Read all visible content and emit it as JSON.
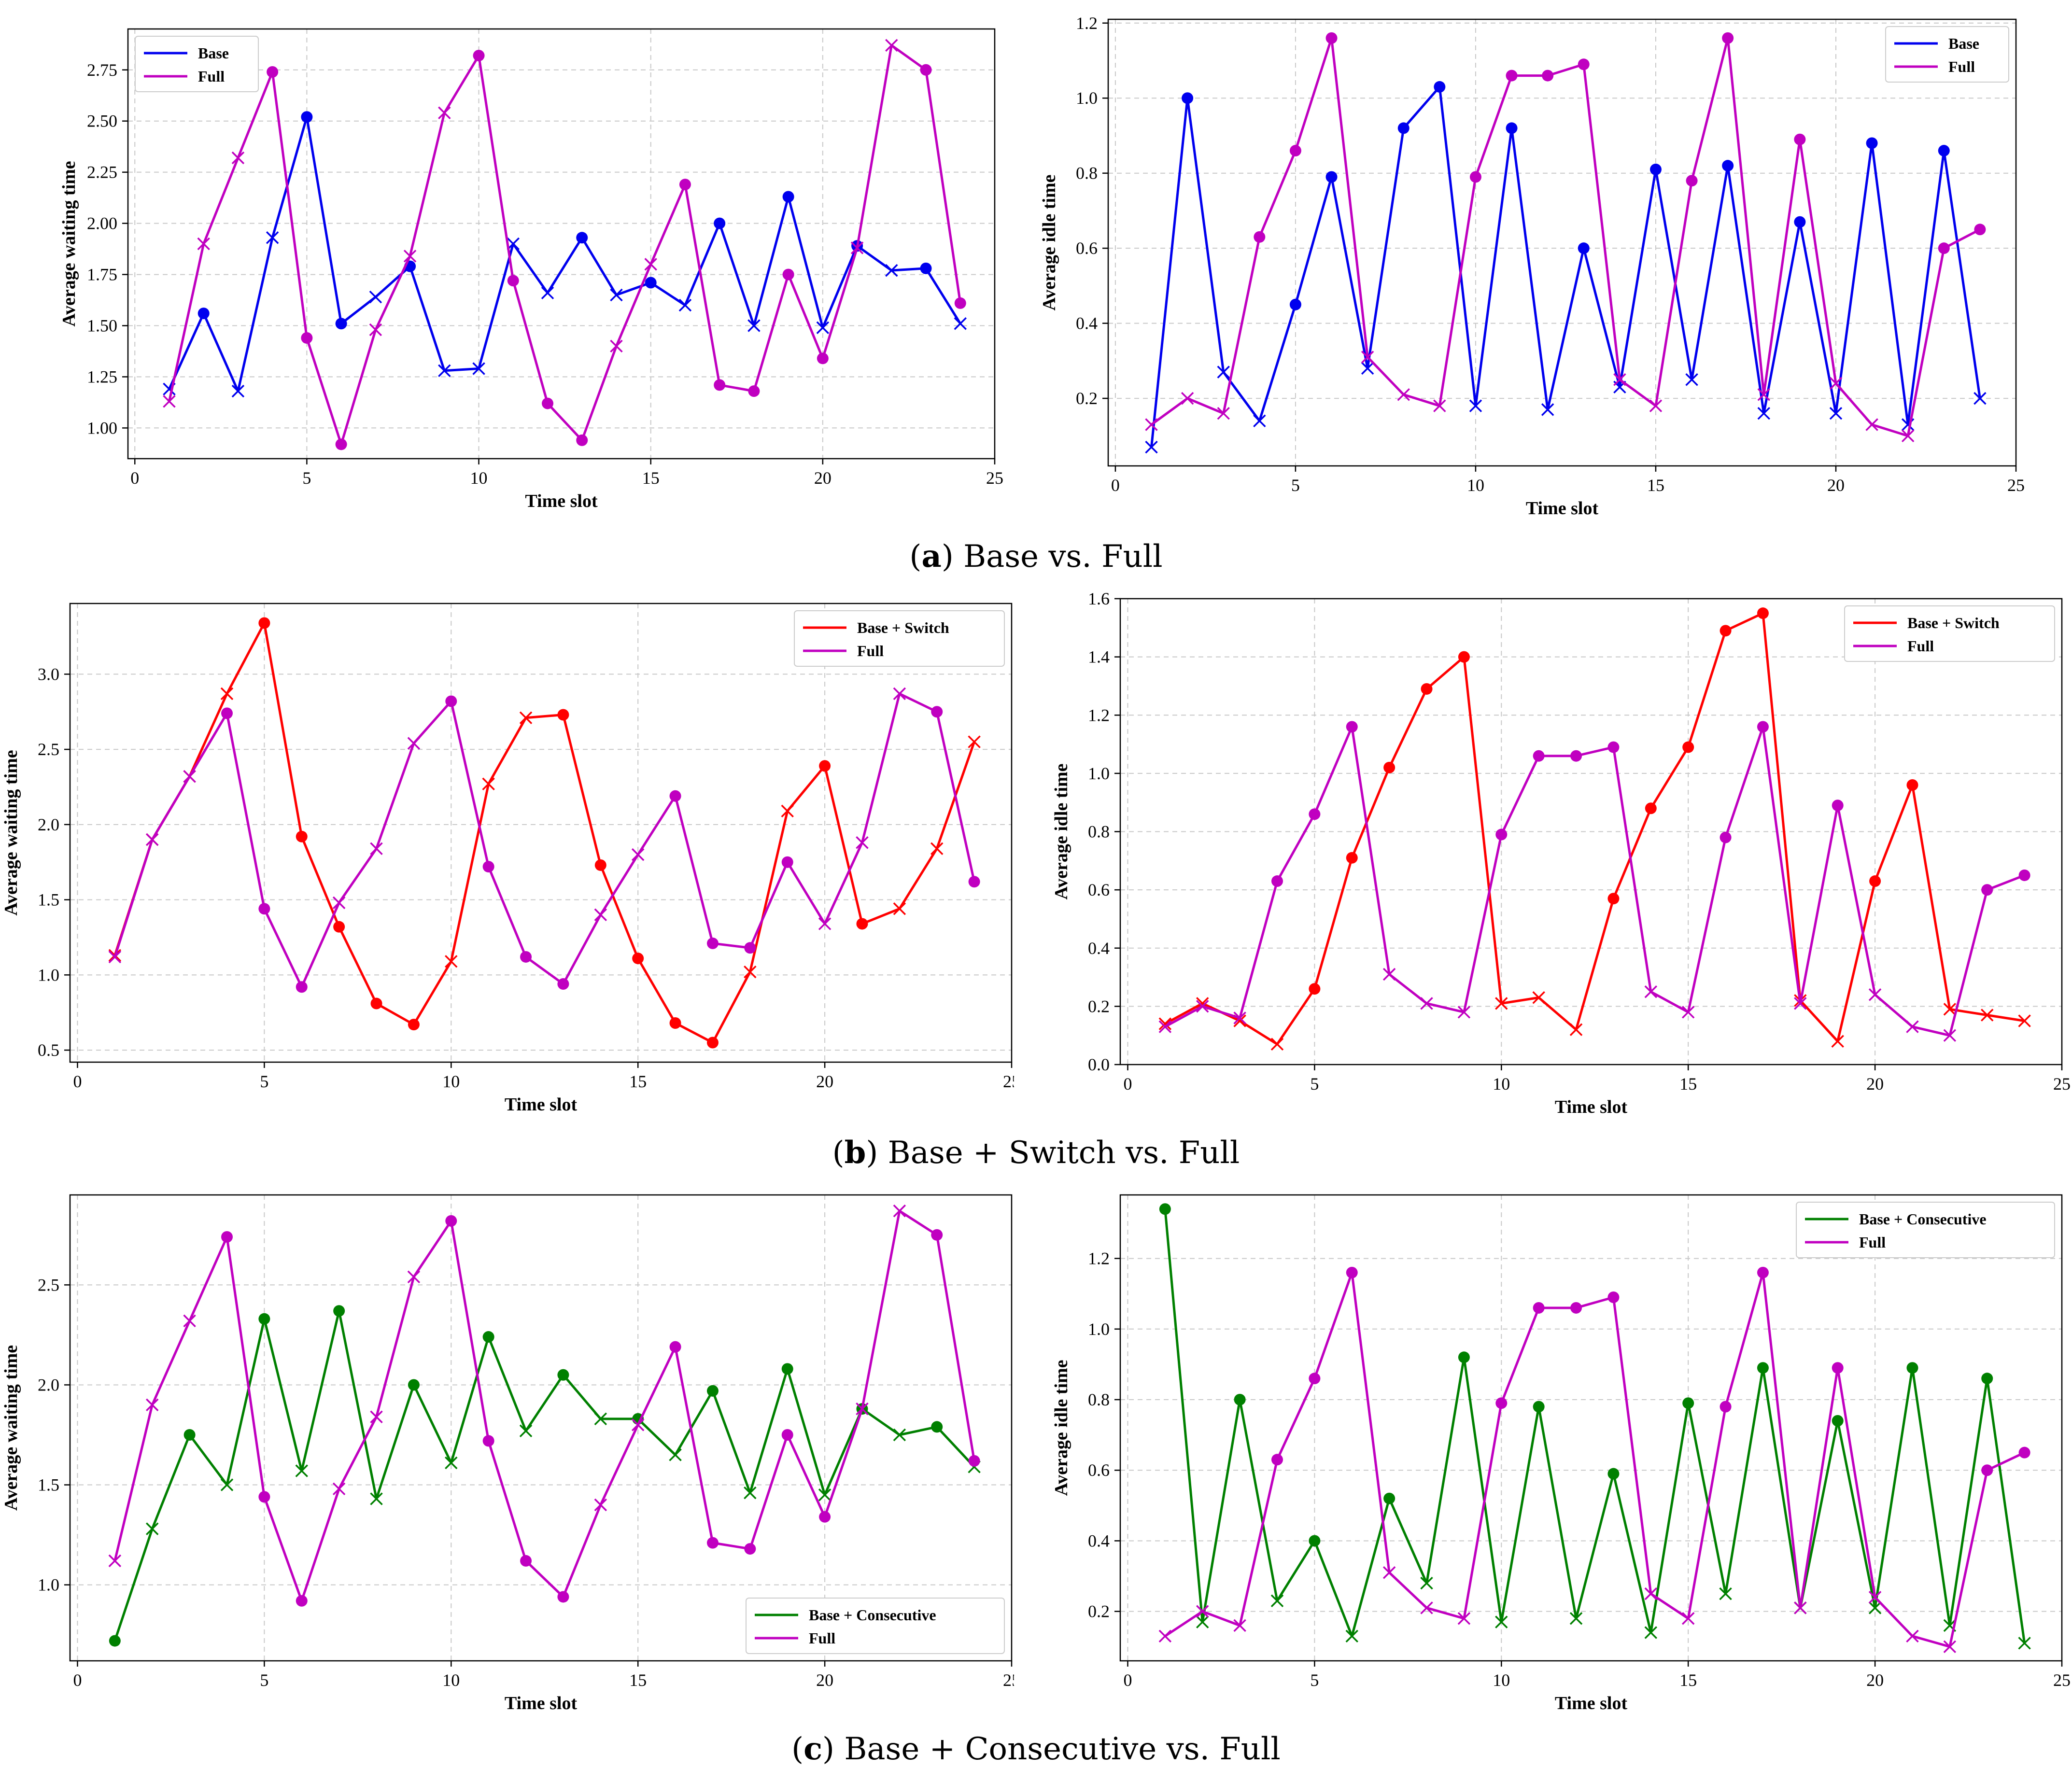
{
  "colors": {
    "blue": "#0000ee",
    "magenta": "#c000c0",
    "red": "#ff0000",
    "green": "#008000",
    "grid": "#c8c8c8"
  },
  "captions": [
    {
      "letter": "a",
      "text": " Base vs. Full"
    },
    {
      "letter": "b",
      "text": " Base + Switch vs. Full"
    },
    {
      "letter": "c",
      "text": " Base + Consecutive vs. Full"
    }
  ],
  "chart_data": [
    {
      "id": "a-left",
      "type": "line",
      "xlabel": "Time slot",
      "ylabel": "Average waiting time",
      "xlim": [
        -0.2,
        25
      ],
      "ylim": [
        0.85,
        2.95
      ],
      "xticks": [
        0,
        5,
        10,
        15,
        20,
        25
      ],
      "xtick_labels": [
        "0",
        "5",
        "10",
        "15",
        "20",
        "25"
      ],
      "yticks": [
        1.0,
        1.25,
        1.5,
        1.75,
        2.0,
        2.25,
        2.5,
        2.75
      ],
      "ytick_labels": [
        "1.00",
        "1.25",
        "1.50",
        "1.75",
        "2.00",
        "2.25",
        "2.50",
        "2.75"
      ],
      "legend_loc": "upper-left",
      "x": [
        1,
        2,
        3,
        4,
        5,
        6,
        7,
        8,
        9,
        10,
        11,
        12,
        13,
        14,
        15,
        16,
        17,
        18,
        19,
        20,
        21,
        22,
        23,
        24
      ],
      "series": [
        {
          "name": "Base",
          "color": "blue",
          "values": [
            1.19,
            1.56,
            1.18,
            1.93,
            2.52,
            1.51,
            1.64,
            1.79,
            1.28,
            1.29,
            1.9,
            1.66,
            1.93,
            1.65,
            1.71,
            1.6,
            2.0,
            1.5,
            2.13,
            1.49,
            1.89,
            1.77,
            1.78,
            1.51
          ],
          "markers": [
            "x",
            "o",
            "x",
            "x",
            "o",
            "o",
            "x",
            "o",
            "x",
            "x",
            "x",
            "x",
            "o",
            "x",
            "o",
            "x",
            "o",
            "x",
            "o",
            "x",
            "o",
            "x",
            "o",
            "x"
          ]
        },
        {
          "name": "Full",
          "color": "magenta",
          "values": [
            1.13,
            1.9,
            2.32,
            2.74,
            1.44,
            0.92,
            1.48,
            1.84,
            2.54,
            2.82,
            1.72,
            1.12,
            0.94,
            1.4,
            1.8,
            2.19,
            1.21,
            1.18,
            1.75,
            1.34,
            1.88,
            2.87,
            2.75,
            1.61
          ],
          "markers": [
            "x",
            "x",
            "x",
            "o",
            "o",
            "o",
            "x",
            "x",
            "x",
            "o",
            "o",
            "o",
            "o",
            "x",
            "x",
            "o",
            "o",
            "o",
            "o",
            "o",
            "x",
            "x",
            "o",
            "o"
          ]
        }
      ]
    },
    {
      "id": "a-right",
      "type": "line",
      "xlabel": "Time slot",
      "ylabel": "Average idle time",
      "xlim": [
        -0.2,
        25
      ],
      "ylim": [
        0.02,
        1.21
      ],
      "xticks": [
        0,
        5,
        10,
        15,
        20,
        25
      ],
      "xtick_labels": [
        "0",
        "5",
        "10",
        "15",
        "20",
        "25"
      ],
      "yticks": [
        0.2,
        0.4,
        0.6,
        0.8,
        1.0,
        1.2
      ],
      "ytick_labels": [
        "0.2",
        "0.4",
        "0.6",
        "0.8",
        "1.0",
        "1.2"
      ],
      "legend_loc": "upper-right",
      "x": [
        1,
        2,
        3,
        4,
        5,
        6,
        7,
        8,
        9,
        10,
        11,
        12,
        13,
        14,
        15,
        16,
        17,
        18,
        19,
        20,
        21,
        22,
        23,
        24
      ],
      "series": [
        {
          "name": "Base",
          "color": "blue",
          "values": [
            0.07,
            1.0,
            0.27,
            0.14,
            0.45,
            0.79,
            0.28,
            0.92,
            1.03,
            0.18,
            0.92,
            0.17,
            0.6,
            0.23,
            0.81,
            0.25,
            0.82,
            0.16,
            0.67,
            0.16,
            0.88,
            0.13,
            0.86,
            0.2
          ],
          "markers": [
            "x",
            "o",
            "x",
            "x",
            "o",
            "o",
            "x",
            "o",
            "o",
            "x",
            "o",
            "x",
            "o",
            "x",
            "o",
            "x",
            "o",
            "x",
            "o",
            "x",
            "o",
            "x",
            "o",
            "x"
          ]
        },
        {
          "name": "Full",
          "color": "magenta",
          "values": [
            0.13,
            0.2,
            0.16,
            0.63,
            0.86,
            1.16,
            0.31,
            0.21,
            0.18,
            0.79,
            1.06,
            1.06,
            1.09,
            0.25,
            0.18,
            0.78,
            1.16,
            0.21,
            0.89,
            0.24,
            0.13,
            0.1,
            0.6,
            0.65
          ],
          "markers": [
            "x",
            "x",
            "x",
            "o",
            "o",
            "o",
            "x",
            "x",
            "x",
            "o",
            "o",
            "o",
            "o",
            "x",
            "x",
            "o",
            "o",
            "x",
            "o",
            "x",
            "x",
            "x",
            "o",
            "o"
          ]
        }
      ]
    },
    {
      "id": "b-left",
      "type": "line",
      "xlabel": "Time slot",
      "ylabel": "Average waiting time",
      "xlim": [
        -0.2,
        25
      ],
      "ylim": [
        0.42,
        3.47
      ],
      "xticks": [
        0,
        5,
        10,
        15,
        20,
        25
      ],
      "xtick_labels": [
        "0",
        "5",
        "10",
        "15",
        "20",
        "25"
      ],
      "yticks": [
        0.5,
        1.0,
        1.5,
        2.0,
        2.5,
        3.0
      ],
      "ytick_labels": [
        "0.5",
        "1.0",
        "1.5",
        "2.0",
        "2.5",
        "3.0"
      ],
      "legend_loc": "upper-right",
      "x": [
        1,
        2,
        3,
        4,
        5,
        6,
        7,
        8,
        9,
        10,
        11,
        12,
        13,
        14,
        15,
        16,
        17,
        18,
        19,
        20,
        21,
        22,
        23,
        24
      ],
      "series": [
        {
          "name": "Base + Switch",
          "color": "red",
          "values": [
            1.13,
            1.9,
            2.32,
            2.87,
            3.34,
            1.92,
            1.32,
            0.81,
            0.67,
            1.09,
            2.27,
            2.71,
            2.73,
            1.73,
            1.11,
            0.68,
            0.55,
            1.02,
            2.09,
            2.39,
            1.34,
            1.44,
            1.84,
            2.55
          ],
          "markers": [
            "x",
            "x",
            "x",
            "x",
            "o",
            "o",
            "o",
            "o",
            "o",
            "x",
            "x",
            "x",
            "o",
            "o",
            "o",
            "o",
            "o",
            "x",
            "x",
            "o",
            "o",
            "x",
            "x",
            "x"
          ]
        },
        {
          "name": "Full",
          "color": "magenta",
          "values": [
            1.12,
            1.9,
            2.32,
            2.74,
            1.44,
            0.92,
            1.48,
            1.84,
            2.54,
            2.82,
            1.72,
            1.12,
            0.94,
            1.4,
            1.8,
            2.19,
            1.21,
            1.18,
            1.75,
            1.34,
            1.88,
            2.87,
            2.75,
            1.62
          ],
          "markers": [
            "x",
            "x",
            "x",
            "o",
            "o",
            "o",
            "x",
            "x",
            "x",
            "o",
            "o",
            "o",
            "o",
            "x",
            "x",
            "o",
            "o",
            "o",
            "o",
            "x",
            "x",
            "x",
            "o",
            "o"
          ]
        }
      ]
    },
    {
      "id": "b-right",
      "type": "line",
      "xlabel": "Time slot",
      "ylabel": "Average idle time",
      "xlim": [
        -0.2,
        25
      ],
      "ylim": [
        0.0,
        1.6
      ],
      "xticks": [
        0,
        5,
        10,
        15,
        20,
        25
      ],
      "xtick_labels": [
        "0",
        "5",
        "10",
        "15",
        "20",
        "25"
      ],
      "yticks": [
        0.0,
        0.2,
        0.4,
        0.6,
        0.8,
        1.0,
        1.2,
        1.4,
        1.6
      ],
      "ytick_labels": [
        "0.0",
        "0.2",
        "0.4",
        "0.6",
        "0.8",
        "1.0",
        "1.2",
        "1.4",
        "1.6"
      ],
      "legend_loc": "upper-right",
      "x": [
        1,
        2,
        3,
        4,
        5,
        6,
        7,
        8,
        9,
        10,
        11,
        12,
        13,
        14,
        15,
        16,
        17,
        18,
        19,
        20,
        21,
        22,
        23,
        24
      ],
      "series": [
        {
          "name": "Base + Switch",
          "color": "red",
          "values": [
            0.14,
            0.21,
            0.15,
            0.07,
            0.26,
            0.71,
            1.02,
            1.29,
            1.4,
            0.21,
            0.23,
            0.12,
            0.57,
            0.88,
            1.09,
            1.49,
            1.55,
            0.22,
            0.08,
            0.63,
            0.96,
            0.19,
            0.17,
            0.15
          ],
          "markers": [
            "x",
            "x",
            "x",
            "x",
            "o",
            "o",
            "o",
            "o",
            "o",
            "x",
            "x",
            "x",
            "o",
            "o",
            "o",
            "o",
            "o",
            "x",
            "x",
            "o",
            "o",
            "x",
            "x",
            "x"
          ]
        },
        {
          "name": "Full",
          "color": "magenta",
          "values": [
            0.13,
            0.2,
            0.16,
            0.63,
            0.86,
            1.16,
            0.31,
            0.21,
            0.18,
            0.79,
            1.06,
            1.06,
            1.09,
            0.25,
            0.18,
            0.78,
            1.16,
            0.21,
            0.89,
            0.24,
            0.13,
            0.1,
            0.6,
            0.65
          ],
          "markers": [
            "x",
            "x",
            "x",
            "o",
            "o",
            "o",
            "x",
            "x",
            "x",
            "o",
            "o",
            "o",
            "o",
            "x",
            "x",
            "o",
            "o",
            "x",
            "o",
            "x",
            "x",
            "x",
            "o",
            "o"
          ]
        }
      ]
    },
    {
      "id": "c-left",
      "type": "line",
      "xlabel": "Time slot",
      "ylabel": "Average waiting time",
      "xlim": [
        -0.2,
        25
      ],
      "ylim": [
        0.62,
        2.95
      ],
      "xticks": [
        0,
        5,
        10,
        15,
        20,
        25
      ],
      "xtick_labels": [
        "0",
        "5",
        "10",
        "15",
        "20",
        "25"
      ],
      "yticks": [
        1.0,
        1.5,
        2.0,
        2.5
      ],
      "ytick_labels": [
        "1.0",
        "1.5",
        "2.0",
        "2.5"
      ],
      "legend_loc": "lower-right",
      "x": [
        1,
        2,
        3,
        4,
        5,
        6,
        7,
        8,
        9,
        10,
        11,
        12,
        13,
        14,
        15,
        16,
        17,
        18,
        19,
        20,
        21,
        22,
        23,
        24
      ],
      "series": [
        {
          "name": "Base + Consecutive",
          "color": "green",
          "values": [
            0.72,
            1.28,
            1.75,
            1.5,
            2.33,
            1.57,
            2.37,
            1.43,
            2.0,
            1.61,
            2.24,
            1.77,
            2.05,
            1.83,
            1.83,
            1.65,
            1.97,
            1.46,
            2.08,
            1.45,
            1.88,
            1.75,
            1.79,
            1.59
          ],
          "markers": [
            "o",
            "x",
            "o",
            "x",
            "o",
            "x",
            "o",
            "x",
            "o",
            "x",
            "o",
            "x",
            "o",
            "x",
            "o",
            "x",
            "o",
            "x",
            "o",
            "x",
            "o",
            "x",
            "o",
            "x"
          ]
        },
        {
          "name": "Full",
          "color": "magenta",
          "values": [
            1.12,
            1.9,
            2.32,
            2.74,
            1.44,
            0.92,
            1.48,
            1.84,
            2.54,
            2.82,
            1.72,
            1.12,
            0.94,
            1.4,
            1.8,
            2.19,
            1.21,
            1.18,
            1.75,
            1.34,
            1.88,
            2.87,
            2.75,
            1.62
          ],
          "markers": [
            "x",
            "x",
            "x",
            "o",
            "o",
            "o",
            "x",
            "x",
            "x",
            "o",
            "o",
            "o",
            "o",
            "x",
            "x",
            "o",
            "o",
            "o",
            "o",
            "o",
            "x",
            "x",
            "o",
            "o"
          ]
        }
      ]
    },
    {
      "id": "c-right",
      "type": "line",
      "xlabel": "Time slot",
      "ylabel": "Average idle time",
      "xlim": [
        -0.2,
        25
      ],
      "ylim": [
        0.06,
        1.38
      ],
      "xticks": [
        0,
        5,
        10,
        15,
        20,
        25
      ],
      "xtick_labels": [
        "0",
        "5",
        "10",
        "15",
        "20",
        "25"
      ],
      "yticks": [
        0.2,
        0.4,
        0.6,
        0.8,
        1.0,
        1.2
      ],
      "ytick_labels": [
        "0.2",
        "0.4",
        "0.6",
        "0.8",
        "1.0",
        "1.2"
      ],
      "legend_loc": "upper-right",
      "x": [
        1,
        2,
        3,
        4,
        5,
        6,
        7,
        8,
        9,
        10,
        11,
        12,
        13,
        14,
        15,
        16,
        17,
        18,
        19,
        20,
        21,
        22,
        23,
        24
      ],
      "series": [
        {
          "name": "Base + Consecutive",
          "color": "green",
          "values": [
            1.34,
            0.17,
            0.8,
            0.23,
            0.4,
            0.13,
            0.52,
            0.28,
            0.92,
            0.17,
            0.78,
            0.18,
            0.59,
            0.14,
            0.79,
            0.25,
            0.89,
            0.21,
            0.74,
            0.21,
            0.89,
            0.16,
            0.86,
            0.11
          ],
          "markers": [
            "o",
            "x",
            "o",
            "x",
            "o",
            "x",
            "o",
            "x",
            "o",
            "x",
            "o",
            "x",
            "o",
            "x",
            "o",
            "x",
            "o",
            "x",
            "o",
            "x",
            "o",
            "x",
            "o",
            "x"
          ]
        },
        {
          "name": "Full",
          "color": "magenta",
          "values": [
            0.13,
            0.2,
            0.16,
            0.63,
            0.86,
            1.16,
            0.31,
            0.21,
            0.18,
            0.79,
            1.06,
            1.06,
            1.09,
            0.25,
            0.18,
            0.78,
            1.16,
            0.21,
            0.89,
            0.24,
            0.13,
            0.1,
            0.6,
            0.65
          ],
          "markers": [
            "x",
            "x",
            "x",
            "o",
            "o",
            "o",
            "x",
            "x",
            "x",
            "o",
            "o",
            "o",
            "o",
            "x",
            "x",
            "o",
            "o",
            "x",
            "o",
            "x",
            "x",
            "x",
            "o",
            "o"
          ]
        }
      ]
    }
  ]
}
